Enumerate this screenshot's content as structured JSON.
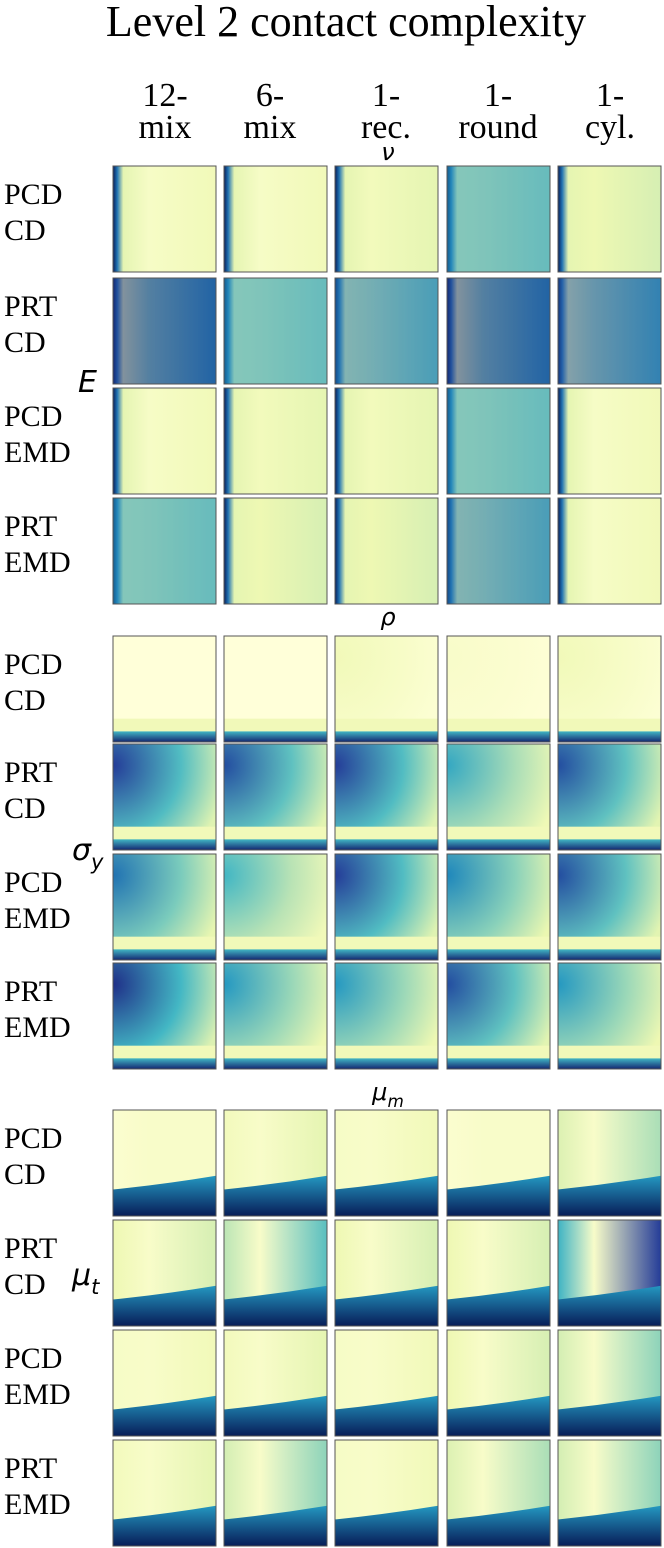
{
  "title": "Level 2 contact complexity",
  "columns": [
    [
      "12-",
      "mix"
    ],
    [
      "6-",
      "mix"
    ],
    [
      "1-",
      "rec."
    ],
    [
      "1-",
      "round"
    ],
    [
      "1-",
      "cyl."
    ]
  ],
  "sections": [
    {
      "label": {
        "symbol": "ν"
      },
      "y_label": {
        "symbol": "E"
      },
      "rows": [
        [
          "PCD",
          "CD"
        ],
        [
          "PRT",
          "CD"
        ],
        [
          "PCD",
          "EMD"
        ],
        [
          "PRT",
          "EMD"
        ]
      ]
    },
    {
      "label": {
        "symbol": "ρ"
      },
      "y_label": {
        "symbol": "σ",
        "subscript": "y"
      },
      "rows": [
        [
          "PCD",
          "CD"
        ],
        [
          "PRT",
          "CD"
        ],
        [
          "PCD",
          "EMD"
        ],
        [
          "PRT",
          "EMD"
        ]
      ]
    },
    {
      "label": {
        "symbol": "μ",
        "subscript": "m"
      },
      "y_label": {
        "symbol": "μ",
        "subscript": "t"
      },
      "rows": [
        [
          "PCD",
          "CD"
        ],
        [
          "PRT",
          "CD"
        ],
        [
          "PCD",
          "EMD"
        ],
        [
          "PRT",
          "EMD"
        ]
      ]
    }
  ]
}
